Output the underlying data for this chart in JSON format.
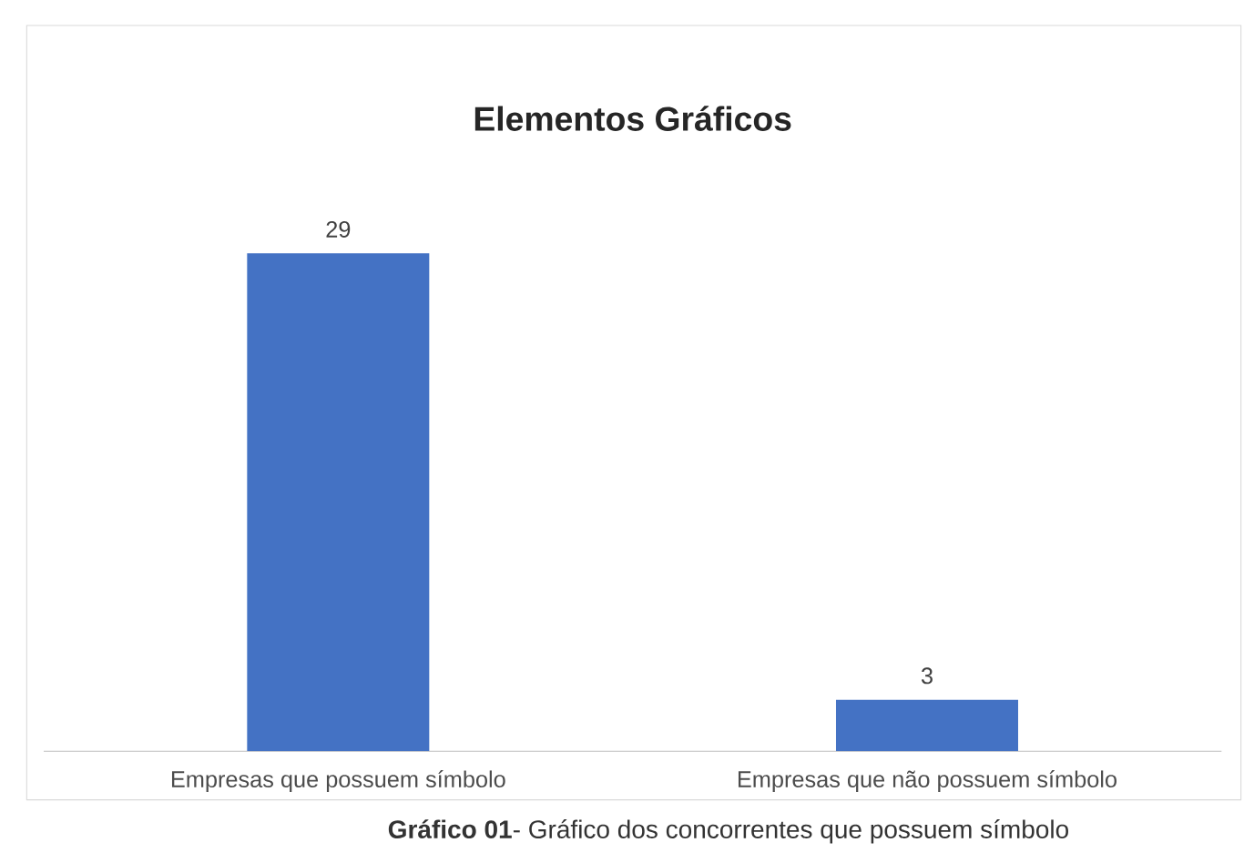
{
  "chart_data": {
    "type": "bar",
    "title": "Elementos Gráficos",
    "categories": [
      "Empresas que possuem símbolo",
      "Empresas que não possuem símbolo"
    ],
    "values": [
      29,
      3
    ],
    "color": "#4472c4",
    "data_labels": true,
    "annotations": [
      "**Gráfico 01**- Gráfico dos concorrentes que possuem símbolo"
    ]
  }
}
